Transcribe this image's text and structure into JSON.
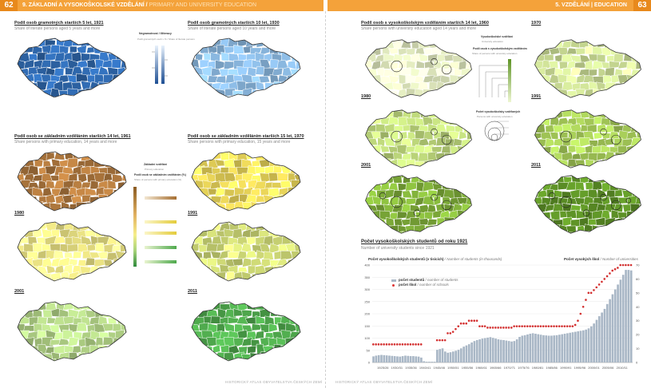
{
  "header": {
    "left_page_number": "62",
    "left_title": "9. ZÁKLADNÍ A VYSOKOŠKOLSKÉ VZDĚLÁNÍ / ",
    "left_subtitle": "PRIMARY AND UNIVERSITY EDUCATION",
    "right_title": "5. VZDĚLÁNÍ | EDUCATION",
    "right_page_number": "63"
  },
  "left_page": {
    "map1": {
      "title": "Podíl osob gramotných starších 5 let, 1921",
      "subtitle": "Share of literate persons aged 5 years and more",
      "color": "#2f68ad"
    },
    "map2": {
      "title": "Podíl osob gramotných starších 10 let, 1930",
      "subtitle": "Share of literate persons aged 10 years and more",
      "color": "#8ebde6"
    },
    "legend_literacy": {
      "title": "Negramotnost / Illiteracy",
      "sub": "Podíl gramotných osob v % / Share of literate persons"
    },
    "map3": {
      "title": "Podíl osob se základním vzděláním starších 14 let, 1961",
      "subtitle": "Share persons with primary education, 14 years and more",
      "color": "#b27a3f"
    },
    "map4": {
      "title": "Podíl osob se základním vzděláním starších 15 let, 1970",
      "subtitle": "Share persons with primary education, 15 years and more",
      "color": "#f1dc5c"
    },
    "legend_primary": {
      "title": "Základní vzdělání",
      "title_en": "Primary education",
      "sub": "Podíl osob se základním vzděláním (%)",
      "sub_en": "Share of persons with primary education (%)"
    },
    "year_1980": "1980",
    "year_1991": "1991",
    "year_2001": "2001",
    "year_2011": "2011",
    "map5_color": "#f6ee8a",
    "map6_color": "#d5e07a",
    "map7_color": "#b7d98a",
    "map8_color": "#4fa94d",
    "footer": "HISTORICKÝ ATLAS OBYVATELSTVA ČESKÝCH ZEMÍ"
  },
  "right_page": {
    "uni_title": "Podíl osob s vysokoškolským vzděláním starších 14 let, 1960",
    "uni_subtitle": "Share persons with university education aged 14 years and more",
    "legend_uni": {
      "title": "Vysokoškolské vzdělání",
      "title_en": "University education",
      "sub": "Podíl osob s vysokoškolským vzděláním",
      "sub_en": "Share of persons with university education",
      "circles_title": "Počet vysokoškolsky vzdělaných",
      "circles_sub": "Persons with university education"
    },
    "year_1970": "1970",
    "year_1980": "1980",
    "year_1991": "1991",
    "year_2001": "2001",
    "year_2011": "2011",
    "colors": [
      "#eaf3c6",
      "#d7ea9e",
      "#c5e080",
      "#a9cf5a",
      "#83b33b",
      "#5f9427"
    ],
    "students_title": "Počet vysokoškolských studentů od roku 1921",
    "students_subtitle": "Number of university students since 1921",
    "chart_left_label": "Počet vysokoškolských studentů (v tisících)",
    "chart_left_label_en": "/ Number of students (in thousands)",
    "chart_right_label": "Počet vysokých škol",
    "chart_right_label_en": "/ Number of universities",
    "legend_students": "počet studentů",
    "legend_students_en": "/ number of students",
    "legend_schools": "počet škol",
    "legend_schools_en": "/ number of schools",
    "footer": "HISTORICKÝ ATLAS OBYVATELSTVA ČESKÝCH ZEMÍ"
  },
  "chart_data": {
    "type": "bar",
    "title": "Počet vysokoškolských studentů od roku 1921",
    "subtitle": "Number of university students since 1921",
    "ylabel": "Počet vysokoškolských studentů (v tisících) / Number of students (in thousands)",
    "y2label": "Počet vysokých škol / Number of universities",
    "ylim": [
      0,
      400
    ],
    "y2lim": [
      0,
      70
    ],
    "yticks": [
      0,
      50,
      100,
      150,
      200,
      250,
      300,
      350,
      400
    ],
    "y2ticks": [
      0,
      10,
      20,
      30,
      40,
      50,
      60,
      70
    ],
    "xticks": [
      "1925/26",
      "1930/31",
      "1935/36",
      "1940/41",
      "1945/46",
      "1950/51",
      "1955/56",
      "1960/61",
      "1965/66",
      "1970/71",
      "1975/76",
      "1980/81",
      "1985/86",
      "1990/91",
      "1995/96",
      "2000/01",
      "2005/06",
      "2010/11"
    ],
    "series": [
      {
        "name": "počet studentů",
        "values": [
          25,
          28,
          30,
          31,
          30,
          29,
          28,
          27,
          26,
          25,
          24,
          26,
          28,
          27,
          26,
          26,
          25,
          24,
          20,
          5,
          3,
          3,
          3,
          3,
          52,
          55,
          58,
          45,
          40,
          42,
          45,
          48,
          52,
          58,
          65,
          70,
          75,
          82,
          88,
          92,
          95,
          98,
          100,
          102,
          104,
          101,
          98,
          95,
          93,
          92,
          90,
          88,
          86,
          88,
          95,
          105,
          110,
          112,
          115,
          118,
          120,
          118,
          116,
          114,
          112,
          111,
          110,
          110,
          111,
          112,
          114,
          116,
          118,
          120,
          122,
          124,
          126,
          128,
          130,
          132,
          135,
          140,
          148,
          160,
          175,
          190,
          205,
          220,
          240,
          260,
          280,
          300,
          320,
          340,
          360,
          380,
          380,
          378
        ]
      },
      {
        "name": "počet škol",
        "values": [
          13,
          13,
          13,
          13,
          13,
          13,
          13,
          13,
          13,
          13,
          13,
          13,
          13,
          13,
          13,
          13,
          13,
          13,
          13,
          null,
          null,
          null,
          null,
          null,
          16,
          16,
          16,
          16,
          21,
          21,
          22,
          24,
          26,
          28,
          28,
          28,
          30,
          30,
          30,
          30,
          26,
          26,
          26,
          25,
          25,
          25,
          25,
          25,
          25,
          25,
          25,
          25,
          25,
          26,
          26,
          26,
          26,
          26,
          26,
          26,
          26,
          26,
          26,
          26,
          26,
          26,
          26,
          26,
          26,
          26,
          26,
          26,
          26,
          26,
          26,
          26,
          27,
          30,
          35,
          40,
          45,
          50,
          50,
          52,
          54,
          56,
          58,
          60,
          62,
          64,
          66,
          67,
          68,
          70,
          70,
          70,
          70,
          70
        ]
      }
    ]
  }
}
